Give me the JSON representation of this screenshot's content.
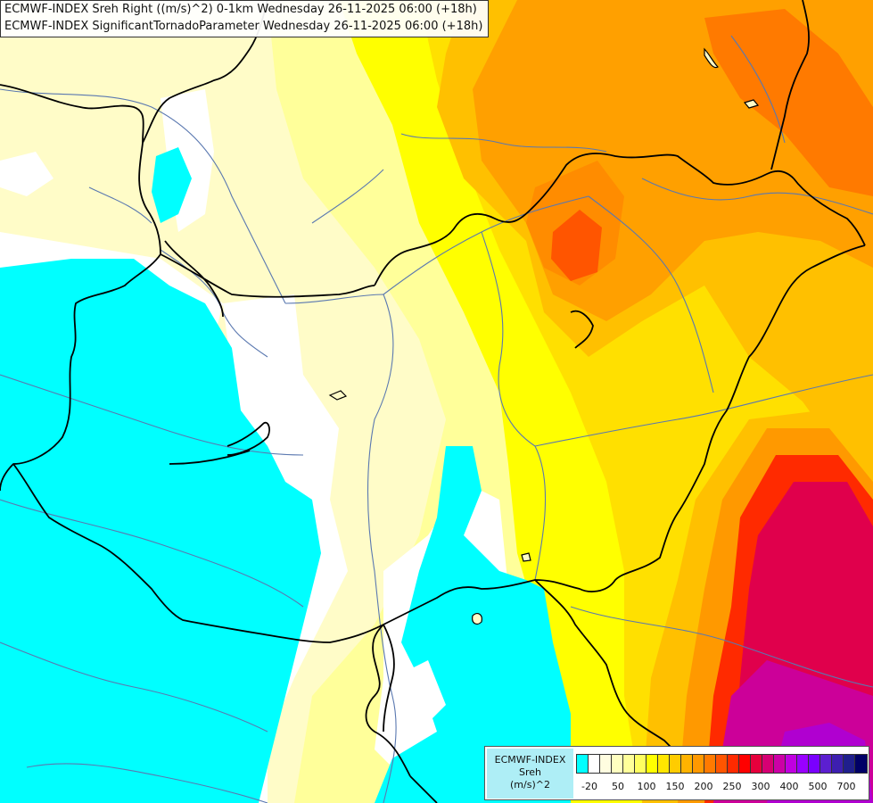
{
  "header": {
    "line1": "ECMWF-INDEX Sreh Right ((m/s)^2) 0-1km Wednesday 26-11-2025 06:00 (+18h)",
    "line2": "ECMWF-INDEX SignificantTornadoParameter Wednesday 26-11-2025 06:00 (+18h)"
  },
  "legend": {
    "title_line1": "ECMWF-INDEX",
    "title_line2": "Sreh",
    "title_line3": "(m/s)^2",
    "swatch_colors": [
      "#00ffff",
      "#ffffff",
      "#fffde0",
      "#ffffc0",
      "#ffff9a",
      "#ffff60",
      "#ffff00",
      "#ffe600",
      "#ffcc00",
      "#ffb300",
      "#ff9900",
      "#ff7a00",
      "#ff5500",
      "#ff2a00",
      "#ff0000",
      "#e6003c",
      "#d60073",
      "#cc00a6",
      "#c000e0",
      "#9900ff",
      "#7a00ff",
      "#5c1fd0",
      "#3d1fb0",
      "#1f1f8c",
      "#000066"
    ],
    "ticks": [
      "-20",
      "50",
      "100",
      "150",
      "200",
      "250",
      "300",
      "400",
      "500",
      "700"
    ]
  },
  "map": {
    "field_colors": {
      "negative": "#00ffff",
      "neutral": "#ffffff",
      "lowest": "#fffcc8",
      "low": "#ffff9a",
      "yellow": "#ffff00",
      "yellow_orange": "#ffe000",
      "light_orange": "#ffc000",
      "orange": "#ffa000",
      "dark_orange": "#ff7a00",
      "red_orange": "#ff5500",
      "red": "#ff2020",
      "crimson": "#e0004c",
      "magenta": "#cc0099",
      "purple": "#b000d0"
    },
    "border_color": "#000000",
    "river_color": "#5a78b0"
  }
}
